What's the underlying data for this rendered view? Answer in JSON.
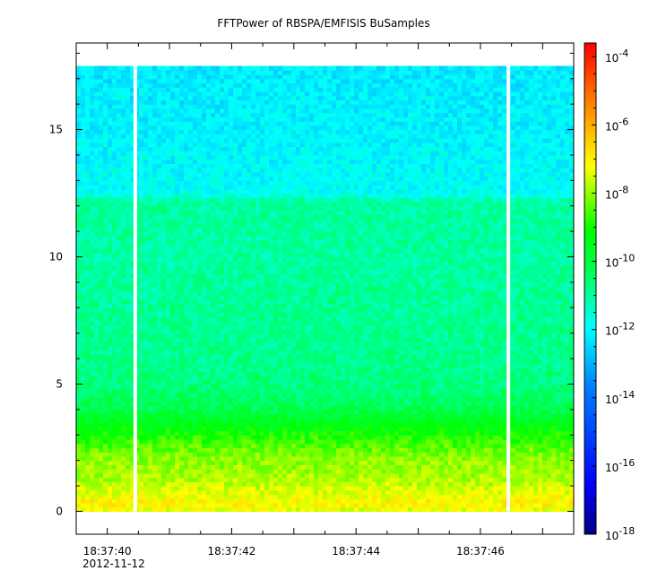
{
  "chart_data": {
    "type": "heatmap",
    "title": "FFTPower of RBSPA/EMFISIS  BuSamples",
    "xlabel": "",
    "ylabel": "",
    "x_date_label": "2012-11-12",
    "x_ticks": [
      "18:37:40",
      "18:37:42",
      "18:37:44",
      "18:37:46"
    ],
    "x_tick_seconds": [
      40,
      42,
      44,
      46
    ],
    "xlim_seconds": [
      39.5,
      47.5
    ],
    "y_ticks": [
      "0",
      "5",
      "10",
      "15"
    ],
    "y_tick_values": [
      0,
      5,
      10,
      15
    ],
    "ylim": [
      -0.9,
      18.4
    ],
    "data_y_range": [
      0,
      17.5
    ],
    "gaps_seconds": [
      40.45,
      46.45
    ],
    "profile": {
      "frequency": [
        0,
        0.3,
        0.5,
        1.0,
        1.5,
        2.0,
        2.5,
        3.0,
        3.5,
        4.0,
        5.0,
        6.0,
        8.0,
        10.0,
        12.2,
        12.5,
        15.0,
        17.5
      ],
      "log_power": [
        -7.5,
        -7.0,
        -7.2,
        -7.6,
        -7.9,
        -8.0,
        -8.4,
        -8.9,
        -9.5,
        -10.2,
        -10.7,
        -10.8,
        -10.9,
        -11.0,
        -11.0,
        -11.9,
        -12.1,
        -12.2
      ]
    },
    "colorbar": {
      "scale": "log",
      "range_exp": [
        -18,
        -3.6
      ],
      "ticks": [
        "10",
        "10",
        "10",
        "10",
        "10",
        "10",
        "10",
        "10"
      ],
      "tick_exps": [
        "-18",
        "-16",
        "-14",
        "-12",
        "-10",
        "-8",
        "-6",
        "-4"
      ],
      "tick_values": [
        -18,
        -16,
        -14,
        -12,
        -10,
        -8,
        -6,
        -4
      ],
      "colors": [
        "#00007f",
        "#0000ff",
        "#007fff",
        "#00ffff",
        "#00ff00",
        "#ffff00",
        "#ff7f00",
        "#ff0000"
      ]
    },
    "grid": false,
    "legend": "colorbar-right"
  }
}
